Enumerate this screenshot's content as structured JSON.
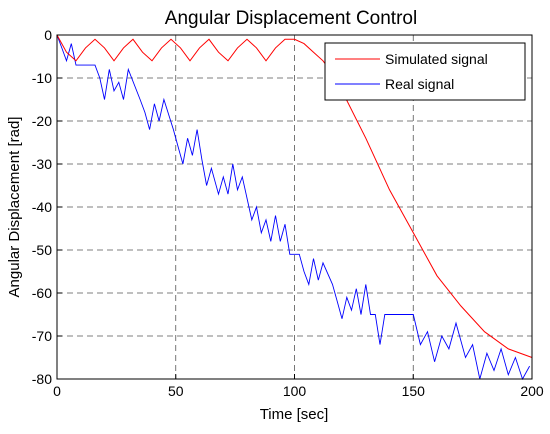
{
  "chart_data": {
    "type": "line",
    "title": "Angular Displacement Control",
    "xlabel": "Time [sec]",
    "ylabel": "Angular Displacement [rad]",
    "xlim": [
      0,
      200
    ],
    "ylim": [
      -80,
      0
    ],
    "xticks": [
      0,
      50,
      100,
      150,
      200
    ],
    "yticks": [
      0,
      -10,
      -20,
      -30,
      -40,
      -50,
      -60,
      -70,
      -80
    ],
    "grid": true,
    "legend_position": "top-right",
    "series": [
      {
        "name": "Simulated signal",
        "color": "#ff0000",
        "x": [
          0,
          4,
          8,
          12,
          16,
          20,
          24,
          28,
          32,
          36,
          40,
          44,
          48,
          52,
          56,
          60,
          64,
          68,
          72,
          76,
          80,
          84,
          88,
          92,
          96,
          100,
          104,
          108,
          112,
          116,
          120,
          130,
          140,
          150,
          160,
          170,
          180,
          190,
          200
        ],
        "y": [
          0,
          -4,
          -6,
          -3,
          -1,
          -3,
          -6,
          -3,
          -1,
          -4,
          -6,
          -3,
          -1,
          -3,
          -6,
          -3,
          -1,
          -4,
          -6,
          -3,
          -1,
          -3,
          -6,
          -3,
          -1,
          -1,
          -2,
          -4,
          -6,
          -9,
          -13,
          -24,
          -36,
          -46,
          -56,
          -63,
          -69,
          -73,
          -75
        ]
      },
      {
        "name": "Real signal",
        "color": "#0000ff",
        "x": [
          0,
          2,
          4,
          6,
          8,
          16,
          18,
          20,
          22,
          24,
          26,
          28,
          30,
          35,
          37,
          39,
          41,
          43,
          45,
          49,
          51,
          53,
          55,
          57,
          59,
          61,
          63,
          65,
          68,
          70,
          72,
          74,
          76,
          78,
          82,
          84,
          86,
          88,
          90,
          92,
          94,
          96,
          98,
          102,
          104,
          106,
          108,
          110,
          112,
          116,
          118,
          120,
          122,
          124,
          126,
          128,
          130,
          132,
          134,
          136,
          138,
          140,
          142,
          144,
          146,
          150,
          153,
          156,
          159,
          162,
          165,
          168,
          172,
          175,
          178,
          181,
          184,
          187,
          190,
          193,
          196,
          199
        ],
        "y": [
          0,
          -3,
          -6,
          -2,
          -7,
          -7,
          -10,
          -15,
          -8,
          -13,
          -11,
          -15,
          -8,
          -15,
          -18,
          -22,
          -16,
          -20,
          -15,
          -22,
          -26,
          -30,
          -24,
          -28,
          -22,
          -29,
          -35,
          -31,
          -37,
          -33,
          -37,
          -30,
          -36,
          -33,
          -43,
          -40,
          -46,
          -43,
          -48,
          -42,
          -48,
          -44,
          -51,
          -51,
          -55,
          -58,
          -52,
          -57,
          -53,
          -58,
          -62,
          -66,
          -61,
          -64,
          -59,
          -65,
          -58,
          -65,
          -65,
          -72,
          -65,
          -65,
          -65,
          -65,
          -65,
          -65,
          -72,
          -69,
          -76,
          -70,
          -73,
          -67,
          -75,
          -72,
          -80,
          -74,
          -78,
          -73,
          -79,
          -75,
          -80,
          -77
        ]
      }
    ]
  }
}
